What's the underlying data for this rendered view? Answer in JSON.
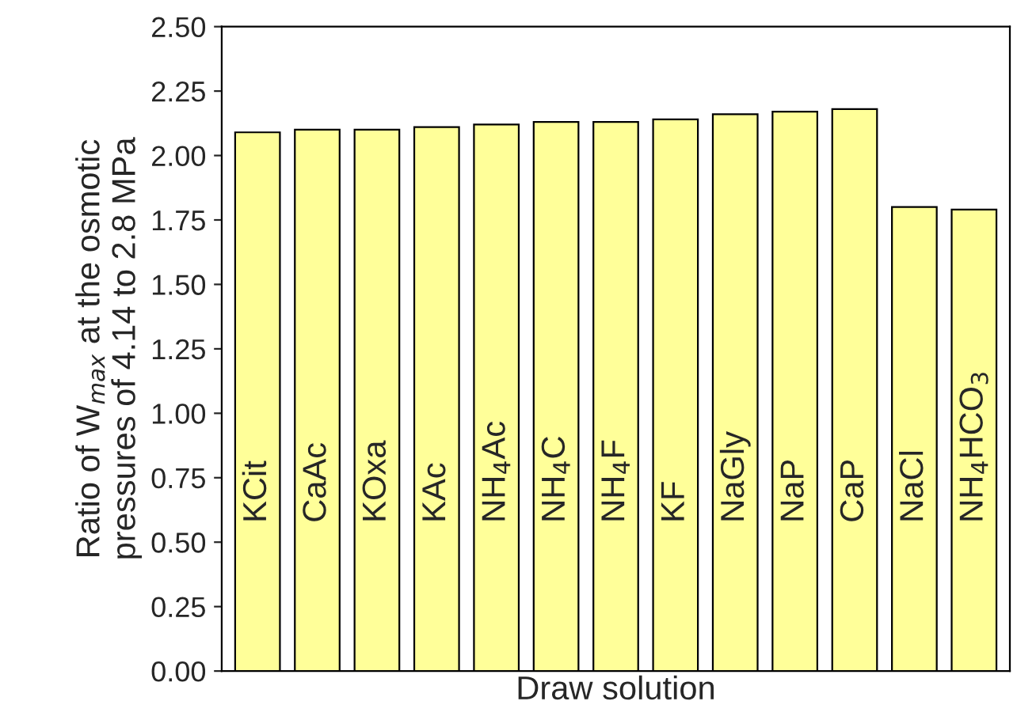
{
  "chart_data": {
    "type": "bar",
    "xlabel": "Draw solution",
    "ylabel": "Ratio of W$_{max}$ at the osmotic\npressures of 4.14 to 2.8 MPa",
    "categories": [
      "KCit",
      "CaAc",
      "KOxa",
      "KAc",
      "NH$_{4}$Ac",
      "NH$_{4}$C",
      "NH$_{4}$F",
      "KF",
      "NaGly",
      "NaP",
      "CaP",
      "NaCl",
      "NH$_{4}$HCO$_{3}$"
    ],
    "values": [
      2.09,
      2.1,
      2.1,
      2.11,
      2.12,
      2.13,
      2.13,
      2.14,
      2.16,
      2.17,
      2.18,
      1.8,
      1.79
    ],
    "color": "#ffff99",
    "ylim": [
      0,
      2.5
    ],
    "yticks": [
      {
        "value": 0,
        "label": "0.00"
      },
      {
        "value": 0.25,
        "label": "0.25"
      },
      {
        "value": 0.5,
        "label": "0.50"
      },
      {
        "value": 0.75,
        "label": "0.75"
      },
      {
        "value": 1.0,
        "label": "1.00"
      },
      {
        "value": 1.25,
        "label": "1.25"
      },
      {
        "value": 1.5,
        "label": "1.50"
      },
      {
        "value": 1.75,
        "label": "1.75"
      },
      {
        "value": 2.0,
        "label": "2.00"
      },
      {
        "value": 2.25,
        "label": "2.25"
      },
      {
        "value": 2.5,
        "label": "2.50"
      }
    ],
    "grid": false,
    "legend": false
  }
}
